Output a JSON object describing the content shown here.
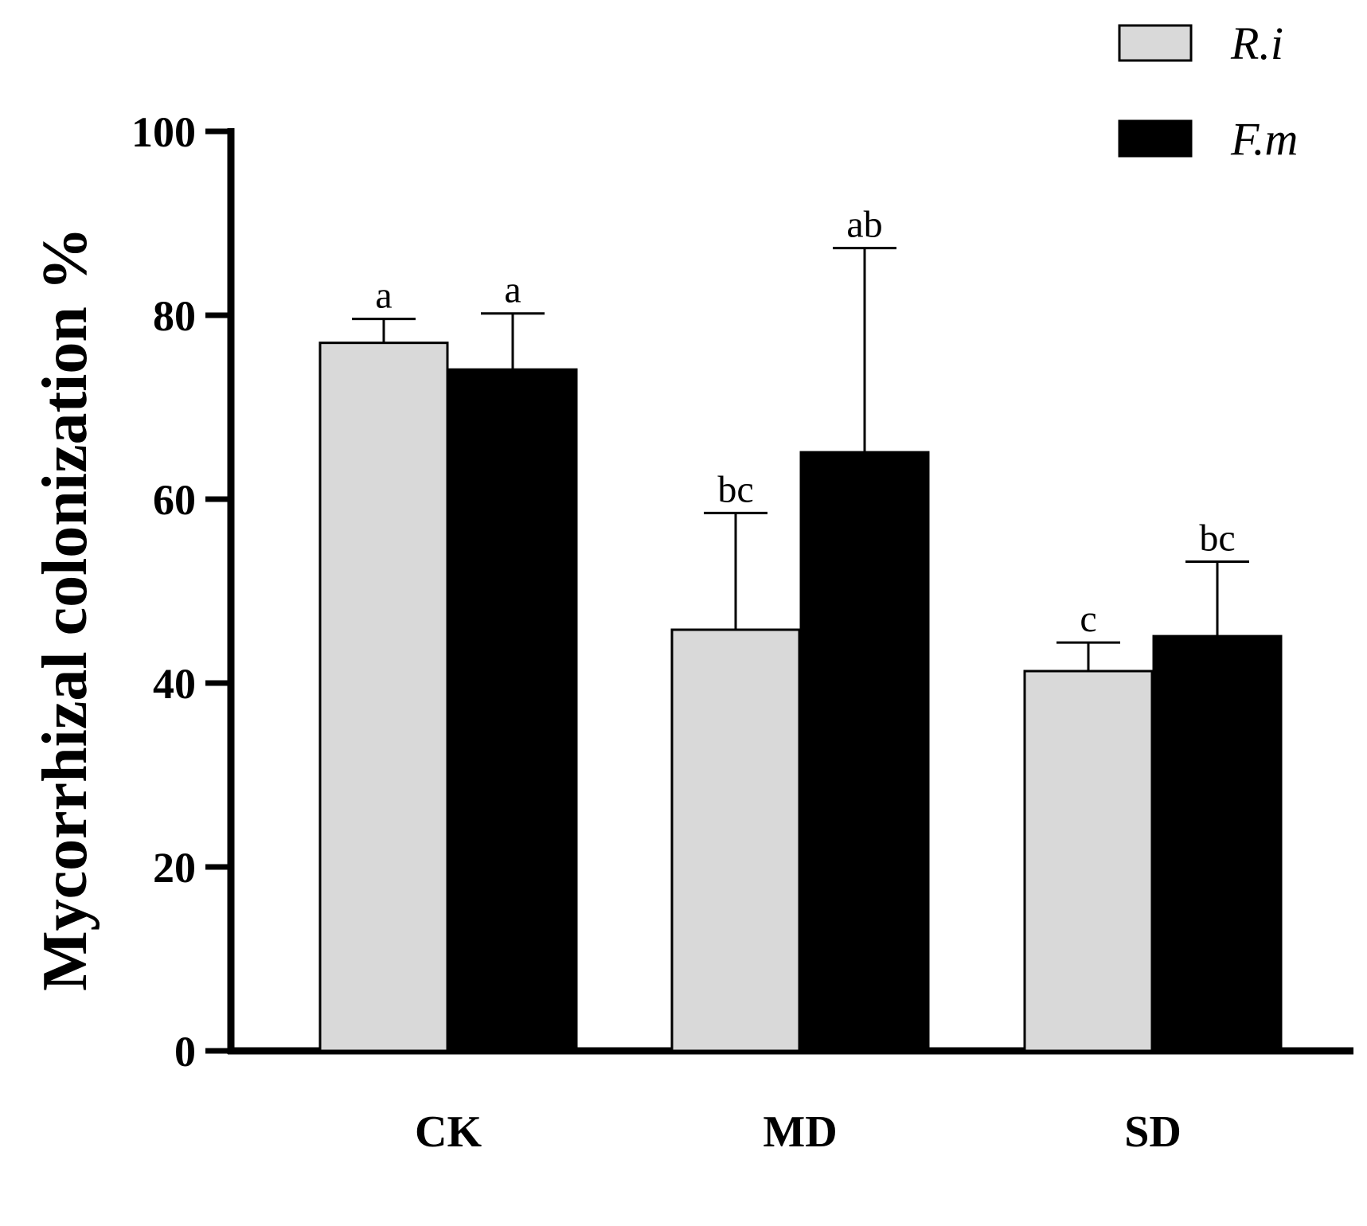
{
  "chart_data": {
    "type": "bar",
    "title": "",
    "xlabel": "",
    "ylabel": "Mycorrhizal colonization %",
    "ylim": [
      0,
      100
    ],
    "yticks": [
      0,
      20,
      40,
      60,
      80,
      100
    ],
    "categories": [
      "CK",
      "MD",
      "SD"
    ],
    "series": [
      {
        "name": "R.i",
        "color": "#d9d9d9",
        "values": [
          77.0,
          45.8,
          41.3
        ],
        "errors": [
          2.6,
          12.7,
          3.1
        ],
        "significance": [
          "a",
          "bc",
          "c"
        ]
      },
      {
        "name": "F.m",
        "color": "#000000",
        "values": [
          74.1,
          65.1,
          45.1
        ],
        "errors": [
          6.1,
          22.2,
          8.1
        ],
        "significance": [
          "a",
          "ab",
          "bc"
        ]
      }
    ],
    "error_bars": "upper",
    "grid": false,
    "legend": "top-right"
  }
}
